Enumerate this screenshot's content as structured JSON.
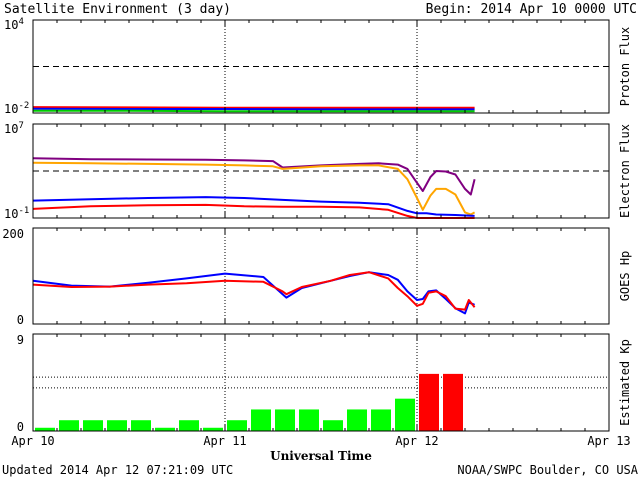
{
  "header": {
    "title": "Satellite Environment (3 day)",
    "begin": "Begin:  2014 Apr 10 0000 UTC"
  },
  "footer": {
    "updated": "Updated 2014 Apr 12 07:21:09 UTC",
    "credit": "NOAA/SWPC Boulder, CO USA"
  },
  "chart_data": [
    {
      "type": "line",
      "panel": "proton",
      "ylabel": "Proton Flux",
      "yscale": "log",
      "ylim": [
        0.01,
        10000
      ],
      "ytick_labels": [
        {
          "base": "10",
          "exp": "4",
          "value": 10000
        },
        {
          "base": "10",
          "exp": "-2",
          "value": 0.01
        }
      ],
      "threshold": 10,
      "series": [
        {
          "color": "#ff0000",
          "x": [
            0,
            0.5,
            1.0,
            1.5,
            2.0,
            2.3
          ],
          "y": [
            0.024,
            0.023,
            0.022,
            0.022,
            0.022,
            0.022
          ]
        },
        {
          "color": "#0000ff",
          "x": [
            0,
            0.5,
            1.0,
            1.5,
            2.0,
            2.3
          ],
          "y": [
            0.019,
            0.018,
            0.018,
            0.017,
            0.017,
            0.017
          ]
        },
        {
          "color": "#00cc00",
          "x": [
            0,
            0.5,
            1.0,
            1.5,
            2.0,
            2.3
          ],
          "y": [
            0.014,
            0.014,
            0.013,
            0.013,
            0.013,
            0.013
          ]
        }
      ]
    },
    {
      "type": "line",
      "panel": "electron",
      "ylabel": "Electron Flux",
      "yscale": "log",
      "ylim": [
        0.1,
        10000000
      ],
      "ytick_labels": [
        {
          "base": "10",
          "exp": "7",
          "value": 10000000
        },
        {
          "base": "10",
          "exp": "-1",
          "value": 0.1
        }
      ],
      "threshold": 1000,
      "series": [
        {
          "color": "#800080",
          "x": [
            0,
            0.3,
            0.6,
            0.9,
            1.1,
            1.25,
            1.3,
            1.5,
            1.7,
            1.8,
            1.9,
            1.95,
            2.0,
            2.03,
            2.07,
            2.1,
            2.15,
            2.2,
            2.25,
            2.28,
            2.3
          ],
          "y": [
            12000,
            10000,
            9500,
            9000,
            8000,
            7000,
            2000,
            3000,
            4000,
            4500,
            3500,
            1500,
            100,
            20,
            300,
            1000,
            900,
            500,
            30,
            10,
            200
          ]
        },
        {
          "color": "#ffa500",
          "x": [
            0,
            0.3,
            0.6,
            0.9,
            1.1,
            1.25,
            1.3,
            1.5,
            1.7,
            1.8,
            1.9,
            1.95,
            2.0,
            2.03,
            2.07,
            2.1,
            2.15,
            2.2,
            2.25,
            2.28,
            2.3
          ],
          "y": [
            5000,
            4500,
            4000,
            3500,
            3000,
            2500,
            1500,
            2500,
            3000,
            3000,
            1500,
            200,
            5,
            0.5,
            8,
            30,
            30,
            10,
            0.3,
            0.2,
            0.3
          ]
        },
        {
          "color": "#0000ff",
          "x": [
            0,
            0.3,
            0.6,
            0.9,
            1.1,
            1.3,
            1.5,
            1.7,
            1.85,
            1.95,
            2.0,
            2.05,
            2.1,
            2.2,
            2.3
          ],
          "y": [
            3,
            4,
            5,
            6,
            5,
            3.5,
            2.5,
            2.0,
            1.5,
            0.4,
            0.25,
            0.25,
            0.2,
            0.18,
            0.15
          ]
        },
        {
          "color": "#ff0000",
          "x": [
            0,
            0.3,
            0.6,
            0.9,
            1.1,
            1.3,
            1.5,
            1.7,
            1.85,
            1.95,
            2.0,
            2.05,
            2.1,
            2.2,
            2.3
          ],
          "y": [
            0.6,
            1.0,
            1.2,
            1.3,
            1.0,
            0.9,
            0.9,
            0.8,
            0.5,
            0.15,
            0.1,
            0.1,
            0.1,
            0.1,
            0.1
          ]
        }
      ]
    },
    {
      "type": "line",
      "panel": "goes-hp",
      "ylabel": "GOES Hp",
      "yscale": "linear",
      "ylim": [
        0,
        200
      ],
      "yticks": [
        200,
        0
      ],
      "series": [
        {
          "color": "#0000ff",
          "x": [
            0,
            0.2,
            0.4,
            0.6,
            0.8,
            1.0,
            1.2,
            1.3,
            1.32,
            1.4,
            1.55,
            1.65,
            1.75,
            1.85,
            1.9,
            1.95,
            2.0,
            2.03,
            2.06,
            2.1,
            2.15,
            2.2,
            2.25,
            2.27,
            2.3
          ],
          "y": [
            90,
            80,
            78,
            86,
            95,
            105,
            98,
            62,
            55,
            75,
            90,
            100,
            108,
            102,
            92,
            68,
            50,
            52,
            68,
            70,
            52,
            33,
            22,
            45,
            40
          ]
        },
        {
          "color": "#ff0000",
          "x": [
            0,
            0.2,
            0.4,
            0.6,
            0.8,
            1.0,
            1.2,
            1.3,
            1.32,
            1.4,
            1.55,
            1.65,
            1.75,
            1.85,
            1.9,
            1.95,
            2.0,
            2.03,
            2.06,
            2.1,
            2.15,
            2.2,
            2.25,
            2.27,
            2.3
          ],
          "y": [
            82,
            77,
            78,
            82,
            85,
            90,
            88,
            68,
            62,
            77,
            90,
            102,
            108,
            95,
            75,
            58,
            38,
            42,
            65,
            68,
            58,
            32,
            30,
            50,
            35
          ]
        }
      ]
    },
    {
      "type": "bar",
      "panel": "kp",
      "ylabel": "Estimated Kp",
      "yscale": "linear",
      "ylim": [
        0,
        9
      ],
      "yticks": [
        9,
        0
      ],
      "x": [
        0.0625,
        0.1875,
        0.3125,
        0.4375,
        0.5625,
        0.6875,
        0.8125,
        0.9375,
        1.0625,
        1.1875,
        1.3125,
        1.4375,
        1.5625,
        1.6875,
        1.8125,
        1.9375,
        2.0625,
        2.1875
      ],
      "values": [
        0.3,
        1.0,
        1.0,
        1.0,
        1.0,
        0.3,
        1.0,
        0.3,
        1.0,
        2.0,
        2.0,
        2.0,
        1.0,
        2.0,
        2.0,
        3.0,
        5.3,
        5.3
      ],
      "colors": [
        "#00ff00",
        "#00ff00",
        "#00ff00",
        "#00ff00",
        "#00ff00",
        "#00ff00",
        "#00ff00",
        "#00ff00",
        "#00ff00",
        "#00ff00",
        "#00ff00",
        "#00ff00",
        "#00ff00",
        "#00ff00",
        "#00ff00",
        "#00ff00",
        "#ff0000",
        "#ff0000"
      ],
      "gridlines": [
        5,
        4
      ]
    }
  ],
  "x_axis": {
    "range": [
      0,
      3
    ],
    "labels": [
      "Apr 10",
      "Apr 11",
      "Apr 12",
      "Apr 13"
    ],
    "title": "Universal Time"
  }
}
